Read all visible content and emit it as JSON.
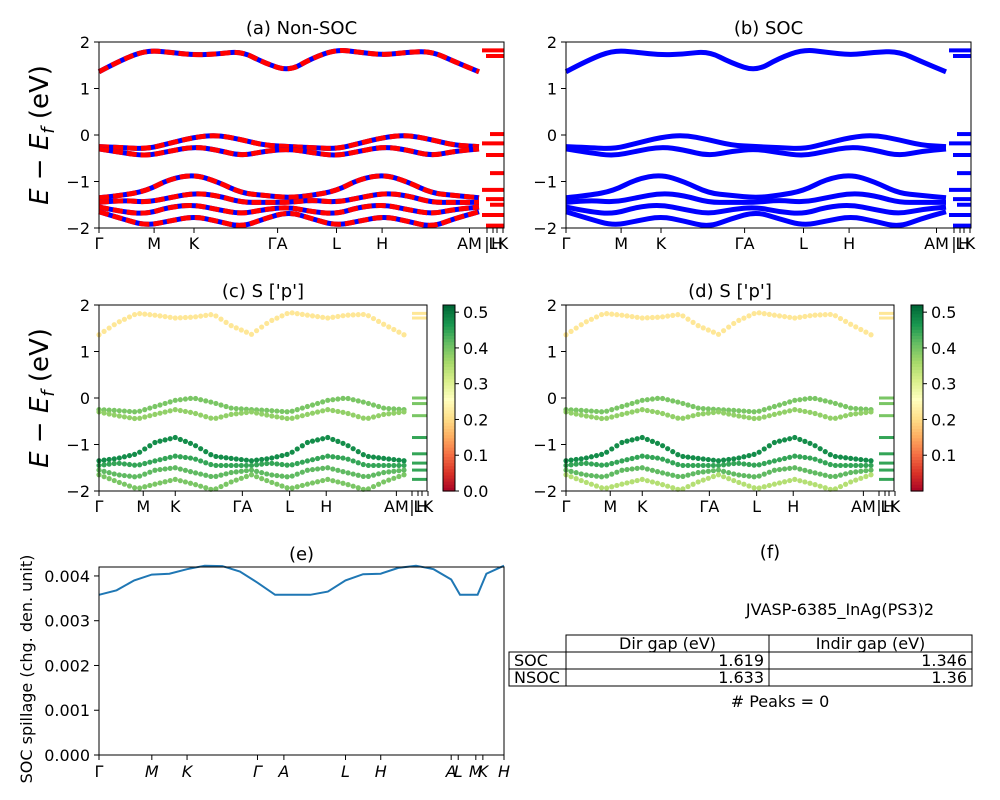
{
  "figure": {
    "material": "JVASP-6385_InAg(PS3)2",
    "peaks_text": "# Peaks = 0"
  },
  "chart_data": [
    {
      "type": "line",
      "title": "(a) Non-SOC",
      "ylabel_main": "E − E",
      "ylabel_sub": "f",
      "ylabel_unit": " (eV)",
      "ylim": [
        -2,
        2
      ],
      "yticks": [
        "2",
        "1",
        "0",
        "−1",
        "−2"
      ],
      "xticks": [
        "Γ",
        "M",
        "K",
        "ΓA",
        "L",
        "H",
        "AM",
        "L",
        "K",
        "|",
        "H"
      ],
      "colors": [
        "#ff0000",
        "#0000ff"
      ],
      "grid": false,
      "series": [
        {
          "x": [
            0.0,
            0.12,
            0.25,
            0.37,
            0.5,
            0.62,
            0.75,
            0.87,
            1.0,
            1.12,
            1.25,
            1.37,
            1.5,
            1.62,
            1.75,
            1.87,
            2.0
          ],
          "values": [
            1.36,
            1.62,
            1.82,
            1.78,
            1.72,
            1.74,
            1.8,
            1.55,
            1.37,
            1.65,
            1.84,
            1.78,
            1.72,
            1.78,
            1.8,
            1.58,
            1.36
          ]
        },
        {
          "x": [
            0.0,
            0.12,
            0.25,
            0.37,
            0.5,
            0.62,
            0.75,
            0.87,
            1.0,
            1.12,
            1.25,
            1.37,
            1.5,
            1.62,
            1.75,
            1.87,
            2.0
          ],
          "values": [
            -0.25,
            -0.27,
            -0.3,
            -0.18,
            -0.05,
            0.0,
            -0.1,
            -0.22,
            -0.25,
            -0.27,
            -0.3,
            -0.18,
            -0.05,
            0.0,
            -0.1,
            -0.22,
            -0.25
          ]
        },
        {
          "x": [
            0.0,
            0.12,
            0.25,
            0.37,
            0.5,
            0.62,
            0.75,
            0.87,
            1.0,
            1.12,
            1.25,
            1.37,
            1.5,
            1.62,
            1.75,
            1.87,
            2.0
          ],
          "values": [
            -0.3,
            -0.38,
            -0.45,
            -0.35,
            -0.25,
            -0.32,
            -0.45,
            -0.35,
            -0.3,
            -0.38,
            -0.45,
            -0.35,
            -0.25,
            -0.32,
            -0.45,
            -0.35,
            -0.3
          ]
        },
        {
          "x": [
            0.0,
            0.12,
            0.25,
            0.37,
            0.5,
            0.62,
            0.75,
            0.87,
            1.0,
            1.12,
            1.25,
            1.37,
            1.5,
            1.62,
            1.75,
            1.87,
            2.0
          ],
          "values": [
            -1.35,
            -1.3,
            -1.2,
            -0.95,
            -0.85,
            -1.0,
            -1.25,
            -1.3,
            -1.35,
            -1.3,
            -1.2,
            -0.95,
            -0.85,
            -1.0,
            -1.25,
            -1.3,
            -1.35
          ]
        },
        {
          "x": [
            0.0,
            0.12,
            0.25,
            0.37,
            0.5,
            0.62,
            0.75,
            0.87,
            1.0,
            1.12,
            1.25,
            1.37,
            1.5,
            1.62,
            1.75,
            1.87,
            2.0
          ],
          "values": [
            -1.45,
            -1.4,
            -1.45,
            -1.35,
            -1.25,
            -1.3,
            -1.45,
            -1.45,
            -1.45,
            -1.4,
            -1.45,
            -1.35,
            -1.25,
            -1.3,
            -1.45,
            -1.45,
            -1.45
          ]
        },
        {
          "x": [
            0.0,
            0.12,
            0.25,
            0.37,
            0.5,
            0.62,
            0.75,
            0.87,
            1.0,
            1.12,
            1.25,
            1.37,
            1.5,
            1.62,
            1.75,
            1.87,
            2.0
          ],
          "values": [
            -1.55,
            -1.65,
            -1.7,
            -1.55,
            -1.5,
            -1.6,
            -1.7,
            -1.6,
            -1.55,
            -1.65,
            -1.7,
            -1.55,
            -1.5,
            -1.6,
            -1.7,
            -1.6,
            -1.55
          ]
        },
        {
          "x": [
            0.0,
            0.12,
            0.25,
            0.37,
            0.5,
            0.62,
            0.75,
            0.87,
            1.0,
            1.12,
            1.25,
            1.37,
            1.5,
            1.62,
            1.75,
            1.87,
            2.0
          ],
          "values": [
            -1.65,
            -1.8,
            -1.95,
            -1.85,
            -1.75,
            -1.85,
            -1.98,
            -1.8,
            -1.65,
            -1.8,
            -1.95,
            -1.85,
            -1.75,
            -1.85,
            -1.98,
            -1.8,
            -1.65
          ]
        }
      ]
    },
    {
      "type": "line",
      "title": "(b) SOC",
      "ylim": [
        -2,
        2
      ],
      "yticks": [
        "2",
        "1",
        "0",
        "−1",
        "−2"
      ],
      "xticks": [
        "Γ",
        "M",
        "K",
        "ΓA",
        "L",
        "H",
        "AM",
        "L",
        "K",
        "|",
        "H"
      ],
      "colors": [
        "#0000ff"
      ],
      "grid": false,
      "series_same_as": "(a) Non-SOC"
    },
    {
      "type": "scatter",
      "title": "(c)  S ['p']",
      "ylabel_main": "E − E",
      "ylabel_sub": "f",
      "ylabel_unit": " (eV)",
      "ylim": [
        -2,
        2
      ],
      "yticks": [
        "2",
        "1",
        "0",
        "−1",
        "−2"
      ],
      "xticks": [
        "Γ",
        "M",
        "K",
        "ΓA",
        "L",
        "H",
        "AM",
        "L",
        "K",
        "|",
        "H"
      ],
      "colorbar": {
        "cmap": "RdYlGn",
        "ticks": [
          "0.5",
          "0.4",
          "0.3",
          "0.2",
          "0.1",
          "0.0"
        ],
        "range": [
          0.0,
          0.52
        ]
      },
      "band_weights": [
        0.22,
        0.4,
        0.38,
        0.48,
        0.45,
        0.42,
        0.4
      ]
    },
    {
      "type": "scatter",
      "title": "(d) S ['p']",
      "ylim": [
        -2,
        2
      ],
      "yticks": [
        "2",
        "1",
        "0",
        "−1",
        "−2"
      ],
      "xticks": [
        "Γ",
        "M",
        "K",
        "ΓA",
        "L",
        "H",
        "AM",
        "L",
        "K",
        "|",
        "H"
      ],
      "colorbar": {
        "cmap": "RdYlGn",
        "ticks": [
          "0.5",
          "0.4",
          "0.3",
          "0.2",
          "0.1"
        ],
        "range": [
          0.0,
          0.52
        ]
      },
      "band_weights": [
        0.22,
        0.4,
        0.38,
        0.48,
        0.45,
        0.42,
        0.35
      ]
    },
    {
      "type": "line",
      "title": "(e)",
      "ylabel": "SOC spillage (chg. den. unit)",
      "ylim": [
        0.0,
        0.0042
      ],
      "yticks": [
        "0.004",
        "0.003",
        "0.002",
        "0.001",
        "0.000"
      ],
      "xticks": [
        "Γ",
        "M",
        "K",
        "Γ",
        "A",
        "L",
        "H",
        "A",
        "L",
        "M",
        "K",
        "H"
      ],
      "color": "#1f77b4",
      "series": [
        {
          "x": [
            0.0,
            0.1,
            0.2,
            0.3,
            0.4,
            0.5,
            0.6,
            0.7,
            0.8,
            0.9,
            1.0,
            1.1,
            1.2,
            1.3,
            1.4,
            1.5,
            1.6,
            1.7,
            1.8,
            1.9,
            2.0,
            2.05,
            2.15,
            2.2,
            2.3
          ],
          "values": [
            0.00358,
            0.00368,
            0.0039,
            0.00403,
            0.00405,
            0.00415,
            0.00423,
            0.00422,
            0.0041,
            0.00385,
            0.00358,
            0.00358,
            0.00358,
            0.00365,
            0.0039,
            0.00404,
            0.00405,
            0.00418,
            0.00423,
            0.00415,
            0.00392,
            0.00358,
            0.00358,
            0.00405,
            0.00423
          ]
        }
      ]
    },
    {
      "type": "table",
      "title": "(f)",
      "caption": "JVASP-6385_InAg(PS3)2",
      "columns": [
        "Dir gap (eV)",
        "Indir gap (eV)"
      ],
      "rows": [
        {
          "label": "SOC",
          "values": [
            "1.619",
            "1.346"
          ]
        },
        {
          "label": "NSOC",
          "values": [
            "1.633",
            "1.36"
          ]
        }
      ],
      "footer": "# Peaks = 0"
    }
  ]
}
